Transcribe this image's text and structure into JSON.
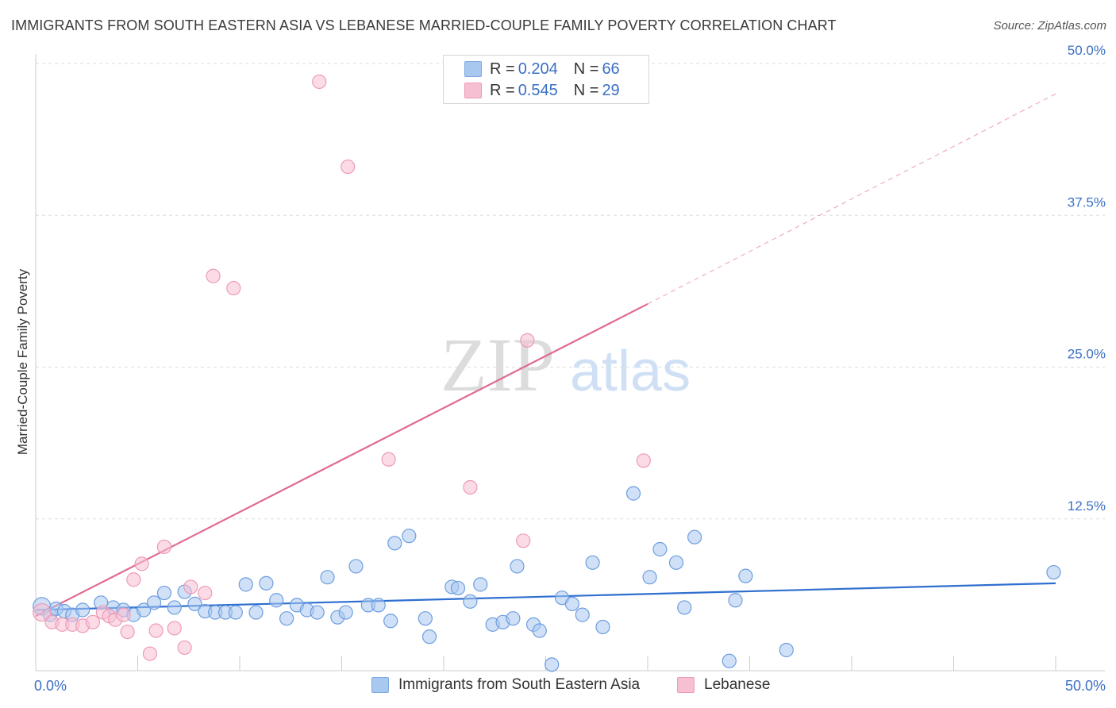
{
  "title": "IMMIGRANTS FROM SOUTH EASTERN ASIA VS LEBANESE MARRIED-COUPLE FAMILY POVERTY CORRELATION CHART",
  "source": "Source: ZipAtlas.com",
  "watermark": {
    "zip": "ZIP",
    "atlas": "atlas"
  },
  "legend": {
    "rows": [
      {
        "r_label": "R = ",
        "r_value": "0.204",
        "n_label": "N = ",
        "n_value": "66",
        "color": "#a9c8f0",
        "border": "#7ea9e0"
      },
      {
        "r_label": "R = ",
        "r_value": "0.545",
        "n_label": "N = ",
        "n_value": "29",
        "color": "#f7bfd2",
        "border": "#ee9ab7"
      }
    ]
  },
  "bottom_legend": [
    {
      "label": "Immigrants from South Eastern Asia",
      "color": "#a9c8f0",
      "border": "#7ea9e0"
    },
    {
      "label": "Lebanese",
      "color": "#f7bfd2",
      "border": "#ee9ab7"
    }
  ],
  "chart_data": {
    "type": "scatter",
    "title": "IMMIGRANTS FROM SOUTH EASTERN ASIA VS LEBANESE MARRIED-COUPLE FAMILY POVERTY CORRELATION CHART",
    "xlabel": "",
    "ylabel": "Married-Couple Family Poverty",
    "xlim": [
      0,
      50
    ],
    "ylim": [
      0,
      50
    ],
    "x_tick_labels": [
      "0.0%",
      "50.0%"
    ],
    "y_ticks": [
      12.5,
      25.0,
      37.5,
      50.0
    ],
    "y_tick_labels": [
      "12.5%",
      "25.0%",
      "37.5%",
      "50.0%"
    ],
    "grid": "horizontal dashed",
    "series": [
      {
        "name": "Immigrants from South Eastern Asia",
        "color": "#a9c8f0",
        "stroke": "#6d9ee0",
        "trend_color": "#2f6fcf",
        "trend": {
          "x": [
            0,
            50
          ],
          "y": [
            5.0,
            7.2
          ],
          "dashed_extension": false
        },
        "points": [
          [
            0.3,
            5.3
          ],
          [
            0.7,
            4.6
          ],
          [
            1.0,
            5.1
          ],
          [
            1.4,
            4.9
          ],
          [
            1.8,
            4.6
          ],
          [
            2.3,
            5.0
          ],
          [
            3.2,
            5.6
          ],
          [
            3.8,
            5.2
          ],
          [
            4.3,
            5.0
          ],
          [
            4.8,
            4.6
          ],
          [
            5.3,
            5.0
          ],
          [
            5.8,
            5.6
          ],
          [
            6.3,
            6.4
          ],
          [
            6.8,
            5.2
          ],
          [
            7.3,
            6.5
          ],
          [
            7.8,
            5.5
          ],
          [
            8.3,
            4.9
          ],
          [
            8.8,
            4.8
          ],
          [
            9.3,
            4.8
          ],
          [
            9.8,
            4.8
          ],
          [
            10.3,
            7.1
          ],
          [
            10.8,
            4.8
          ],
          [
            11.3,
            7.2
          ],
          [
            11.8,
            5.8
          ],
          [
            12.3,
            4.3
          ],
          [
            12.8,
            5.4
          ],
          [
            13.3,
            5.0
          ],
          [
            13.8,
            4.8
          ],
          [
            14.3,
            7.7
          ],
          [
            14.8,
            4.4
          ],
          [
            15.2,
            4.8
          ],
          [
            15.7,
            8.6
          ],
          [
            16.3,
            5.4
          ],
          [
            16.8,
            5.4
          ],
          [
            17.4,
            4.1
          ],
          [
            17.6,
            10.5
          ],
          [
            18.3,
            11.1
          ],
          [
            19.1,
            4.3
          ],
          [
            19.3,
            2.8
          ],
          [
            20.4,
            6.9
          ],
          [
            20.7,
            6.8
          ],
          [
            21.3,
            5.7
          ],
          [
            21.8,
            7.1
          ],
          [
            22.4,
            3.8
          ],
          [
            22.9,
            4.0
          ],
          [
            23.4,
            4.3
          ],
          [
            23.6,
            8.6
          ],
          [
            24.4,
            3.8
          ],
          [
            24.7,
            3.3
          ],
          [
            25.3,
            0.5
          ],
          [
            25.8,
            6.0
          ],
          [
            26.3,
            5.5
          ],
          [
            26.8,
            4.6
          ],
          [
            27.3,
            8.9
          ],
          [
            27.8,
            3.6
          ],
          [
            29.3,
            14.6
          ],
          [
            30.1,
            7.7
          ],
          [
            30.6,
            10.0
          ],
          [
            31.4,
            8.9
          ],
          [
            31.8,
            5.2
          ],
          [
            32.3,
            11.0
          ],
          [
            34.3,
            5.8
          ],
          [
            34.0,
            0.8
          ],
          [
            34.8,
            7.8
          ],
          [
            36.8,
            1.7
          ],
          [
            49.9,
            8.1
          ]
        ]
      },
      {
        "name": "Lebanese",
        "color": "#f7bfd2",
        "stroke": "#ee9ab7",
        "trend_color": "#e06a92",
        "trend": {
          "x": [
            0,
            30
          ],
          "y": [
            4.5,
            30.2
          ],
          "dashed_to": [
            50,
            47.5
          ]
        },
        "points": [
          [
            0.3,
            4.8
          ],
          [
            0.8,
            4.0
          ],
          [
            1.3,
            3.8
          ],
          [
            1.8,
            3.8
          ],
          [
            2.3,
            3.7
          ],
          [
            2.8,
            4.0
          ],
          [
            3.3,
            4.8
          ],
          [
            3.6,
            4.5
          ],
          [
            3.9,
            4.2
          ],
          [
            4.3,
            4.6
          ],
          [
            4.5,
            3.2
          ],
          [
            4.8,
            7.5
          ],
          [
            5.2,
            8.8
          ],
          [
            5.6,
            1.4
          ],
          [
            5.9,
            3.3
          ],
          [
            6.3,
            10.2
          ],
          [
            6.8,
            3.5
          ],
          [
            7.3,
            1.9
          ],
          [
            7.6,
            6.9
          ],
          [
            8.3,
            6.4
          ],
          [
            8.7,
            32.5
          ],
          [
            9.7,
            31.5
          ],
          [
            13.9,
            48.5
          ],
          [
            15.3,
            41.5
          ],
          [
            17.3,
            17.4
          ],
          [
            21.3,
            15.1
          ],
          [
            23.9,
            10.7
          ],
          [
            24.1,
            27.2
          ],
          [
            29.8,
            17.3
          ]
        ]
      }
    ]
  }
}
